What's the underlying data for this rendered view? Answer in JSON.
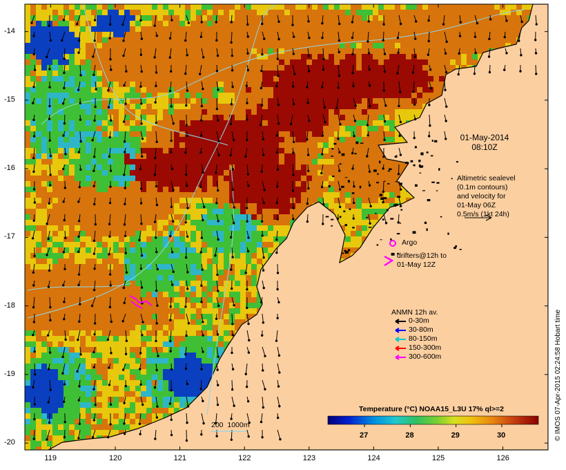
{
  "map": {
    "datetime_line1": "01-May-2014",
    "datetime_line2": "08:10Z",
    "altimetry": {
      "line1": "Altimetric sealevel",
      "line2": "(0.1m contours)",
      "line3": "and velocity for",
      "line4": "01-May 06Z",
      "line5": "0.5m/s (1kt 24h)"
    },
    "argo_label": "Argo",
    "drifters_line1": "drifters@12h to",
    "drifters_line2": "01-May 12Z",
    "mooring_legend": {
      "title": "ANMN 12h av.",
      "items": [
        {
          "label": "0-30m",
          "color": "#000000"
        },
        {
          "label": "30-80m",
          "color": "#0000ff"
        },
        {
          "label": "80-150m",
          "color": "#00cccc"
        },
        {
          "label": "150-300m",
          "color": "#ff0000"
        },
        {
          "label": "300-600m",
          "color": "#ff00ff"
        }
      ]
    },
    "isobath_label": "200  1000m",
    "credit": "© IMOS 07-Apr-2015 02:24:58 Hobart time",
    "colorbar": {
      "title": "Temperature (°C) NOAA15_L3U 17% ql>=2",
      "ticks": [
        "27",
        "28",
        "29",
        "30"
      ],
      "tick_values": [
        27,
        28,
        29,
        30
      ],
      "range": [
        26.2,
        30.8
      ]
    },
    "axes": {
      "lon_ticks": [
        "119",
        "120",
        "121",
        "122",
        "123",
        "124",
        "125",
        "126"
      ],
      "lon_values": [
        119,
        120,
        121,
        122,
        123,
        124,
        125,
        126
      ],
      "lat_ticks": [
        "-14",
        "-15",
        "-16",
        "-17",
        "-18",
        "-19",
        "-20"
      ],
      "lat_values": [
        -14,
        -15,
        -16,
        -17,
        -18,
        -19,
        -20
      ],
      "lon_range": [
        118.6,
        126.7
      ],
      "lat_range": [
        -20.1,
        -13.6
      ]
    },
    "colors": {
      "land": "#fccfa0",
      "hot": "#9a0a02",
      "orange": "#d7740c",
      "yellow": "#e8c80c",
      "green": "#3fbf35",
      "cyan": "#2eb6c8",
      "blue": "#0a3fc0"
    }
  }
}
